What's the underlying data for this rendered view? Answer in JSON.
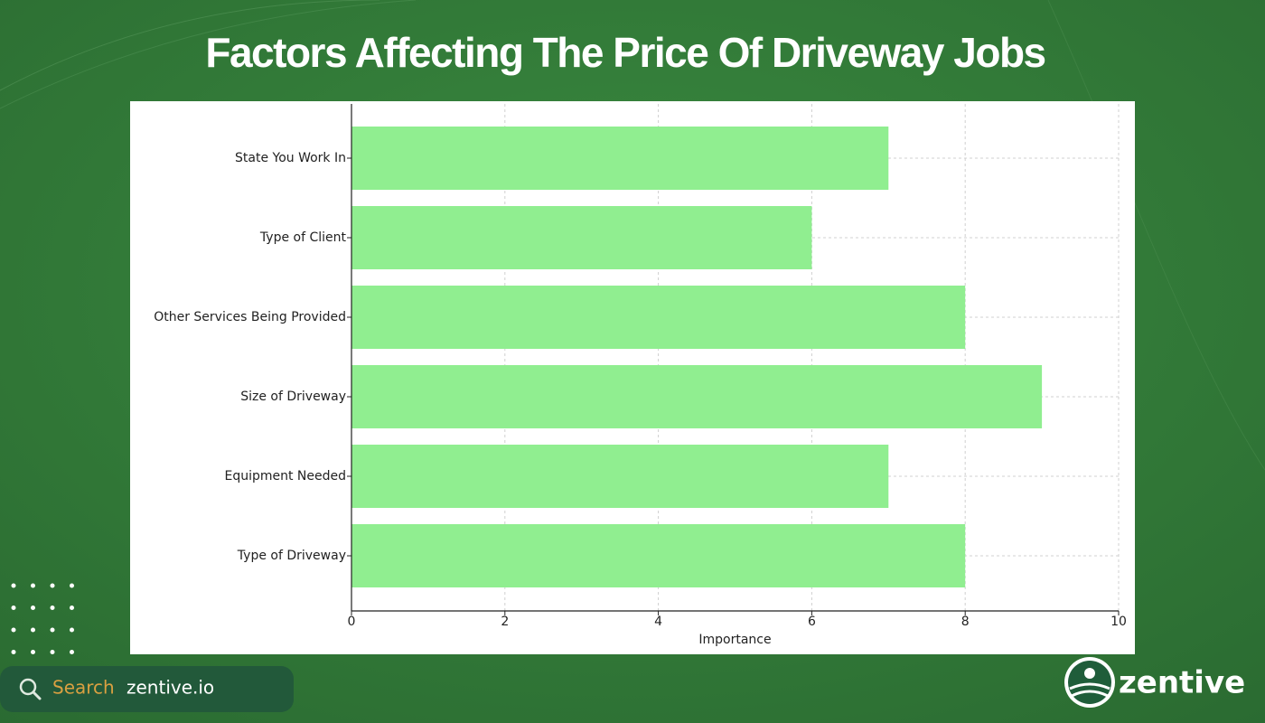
{
  "chart_data": {
    "type": "bar",
    "orientation": "horizontal",
    "title": "Factors Affecting The Price Of Driveway Jobs",
    "xlabel": "Importance",
    "categories": [
      "State You Work In",
      "Type of Client",
      "Other Services Being Provided",
      "Size of Driveway",
      "Equipment Needed",
      "Type of Driveway"
    ],
    "values": [
      7,
      6,
      8,
      9,
      7,
      8
    ],
    "color": "#90ee90",
    "xlim": [
      0,
      10
    ],
    "xticks": [
      0,
      2,
      4,
      6,
      8,
      10
    ],
    "grid": true
  },
  "branding": {
    "search_label": "Search",
    "site": "zentive.io",
    "logo_text": "zentive"
  }
}
